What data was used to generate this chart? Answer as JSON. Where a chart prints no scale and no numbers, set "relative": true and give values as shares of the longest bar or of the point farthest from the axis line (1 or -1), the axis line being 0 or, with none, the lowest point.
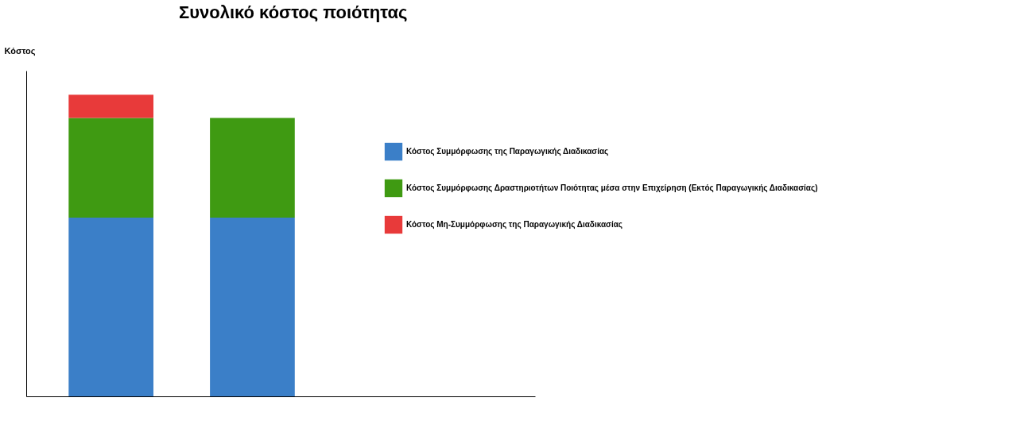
{
  "chart_data": {
    "type": "bar",
    "title": "Συνολικό κόστος ποιότητας",
    "ylabel": "Κόστος",
    "categories": [
      null,
      null
    ],
    "stacked": true,
    "relative": true,
    "grid": false,
    "legend": "right",
    "series": [
      {
        "name": "Κόστος Συμμόρφωσης της Παραγωγικής Διαδικασίας",
        "color": "#3b7fc8",
        "values": [
          0.593,
          0.593
        ]
      },
      {
        "name": "Κόστος Συμμόρφωσης Δραστηριοτήτων Ποιότητας μέσα στην Επιχείρηση (Εκτός Παραγωγικής Διαδικασίας)",
        "color": "#3f9a12",
        "values": [
          0.33,
          0.33
        ]
      },
      {
        "name": "Κόστος Μη-Συμμόρφωσης της Παραγωγικής Διαδικασίας",
        "color": "#e83a3a",
        "values": [
          0.077,
          null
        ]
      }
    ]
  }
}
